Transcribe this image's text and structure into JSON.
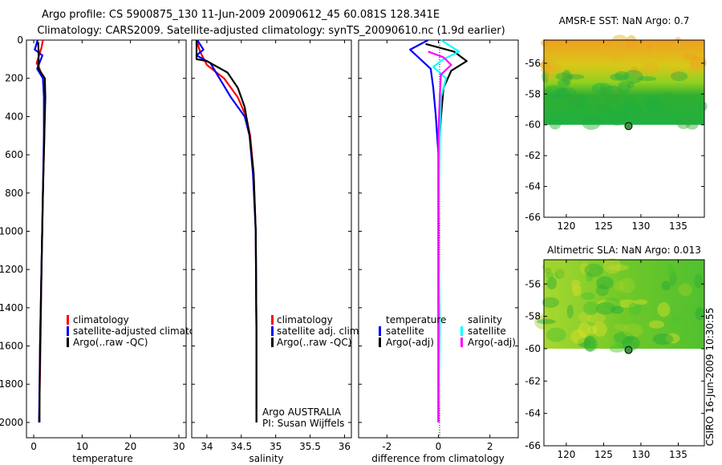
{
  "header": {
    "line1": "Argo profile: CS 5900875_130 11-Jun-2009 20090612_45 60.081S 128.341E",
    "line2": "Climatology: CARS2009. Satellite-adjusted climatology: synTS_20090610.nc (1.9d earlier)"
  },
  "credit": "CSIRO 16-Jun-2009 10:30:55",
  "colors": {
    "red": "#ff0000",
    "blue": "#0000ff",
    "black": "#000000",
    "cyan": "#00ffff",
    "magenta": "#ff00ff"
  },
  "chart_data": [
    {
      "id": "temperature",
      "type": "line",
      "xlabel": "temperature",
      "xlim": [
        -1.5,
        31.5
      ],
      "xticks": [
        0,
        10,
        20,
        30
      ],
      "ylim": [
        2080,
        0
      ],
      "yticks": [
        0,
        200,
        400,
        600,
        800,
        1000,
        1200,
        1400,
        1600,
        1800,
        2000
      ],
      "legend": [
        "climatology",
        "satellite-adjusted climatology",
        "Argo(..raw -QC)"
      ],
      "series": [
        {
          "name": "climatology",
          "color": "red",
          "points": [
            [
              1.9,
              0
            ],
            [
              1.6,
              40
            ],
            [
              0.6,
              120
            ],
            [
              1.2,
              150
            ],
            [
              1.9,
              200
            ],
            [
              2.2,
              300
            ],
            [
              2.2,
              500
            ],
            [
              1.9,
              800
            ],
            [
              1.6,
              1200
            ],
            [
              1.4,
              1600
            ],
            [
              1.1,
              2000
            ]
          ]
        },
        {
          "name": "satellite-adjusted climatology",
          "color": "blue",
          "points": [
            [
              0.8,
              0
            ],
            [
              0.2,
              50
            ],
            [
              1.8,
              80
            ],
            [
              0.7,
              150
            ],
            [
              1.9,
              200
            ],
            [
              2.1,
              300
            ],
            [
              2.1,
              500
            ],
            [
              1.9,
              800
            ],
            [
              1.6,
              1200
            ],
            [
              1.3,
              1600
            ],
            [
              1.1,
              2000
            ]
          ]
        },
        {
          "name": "Argo(..raw -QC)",
          "color": "black",
          "points": [
            [
              0.9,
              10
            ],
            [
              1.0,
              60
            ],
            [
              1.0,
              150
            ],
            [
              2.3,
              200
            ],
            [
              2.4,
              300
            ],
            [
              2.2,
              500
            ],
            [
              1.9,
              800
            ],
            [
              1.6,
              1200
            ],
            [
              1.3,
              1600
            ],
            [
              1.2,
              1900
            ],
            [
              1.2,
              2000
            ]
          ]
        }
      ]
    },
    {
      "id": "salinity",
      "type": "line",
      "xlabel": "salinity",
      "xlim": [
        33.78,
        36.1
      ],
      "xticks": [
        34,
        34.5,
        35,
        35.5,
        36
      ],
      "xticklabels": [
        "34",
        "34.5",
        "35",
        "35.5",
        "36"
      ],
      "ylim": [
        2080,
        0
      ],
      "legend": [
        "climatology",
        "satellite adj. clim.",
        "Argo(..raw -QC)"
      ],
      "note1": "Argo AUSTRALIA",
      "note2": "PI: Susan Wijffels",
      "series": [
        {
          "name": "climatology",
          "color": "red",
          "points": [
            [
              33.85,
              0
            ],
            [
              33.9,
              60
            ],
            [
              34.0,
              130
            ],
            [
              34.25,
              200
            ],
            [
              34.45,
              300
            ],
            [
              34.57,
              400
            ],
            [
              34.63,
              500
            ],
            [
              34.68,
              700
            ],
            [
              34.71,
              1000
            ],
            [
              34.72,
              1500
            ],
            [
              34.72,
              2000
            ]
          ]
        },
        {
          "name": "satellite adj. clim.",
          "color": "blue",
          "points": [
            [
              33.86,
              0
            ],
            [
              33.95,
              50
            ],
            [
              33.85,
              80
            ],
            [
              34.05,
              120
            ],
            [
              34.15,
              180
            ],
            [
              34.35,
              300
            ],
            [
              34.55,
              400
            ],
            [
              34.62,
              500
            ],
            [
              34.67,
              700
            ],
            [
              34.71,
              1000
            ],
            [
              34.72,
              1500
            ],
            [
              34.72,
              2000
            ]
          ]
        },
        {
          "name": "Argo(..raw -QC)",
          "color": "black",
          "points": [
            [
              33.85,
              0
            ],
            [
              33.85,
              100
            ],
            [
              34.0,
              110
            ],
            [
              34.3,
              170
            ],
            [
              34.45,
              250
            ],
            [
              34.55,
              350
            ],
            [
              34.62,
              500
            ],
            [
              34.68,
              700
            ],
            [
              34.71,
              1000
            ],
            [
              34.72,
              1500
            ],
            [
              34.72,
              2000
            ]
          ]
        }
      ]
    },
    {
      "id": "difference",
      "type": "line",
      "xlabel": "difference from climatology",
      "xlim": [
        -3.1,
        3.1
      ],
      "xticks": [
        -2,
        0,
        2
      ],
      "ylim": [
        2080,
        0
      ],
      "legend_temperature_title": "temperature",
      "legend_salinity_title": "salinity",
      "legend": [
        "satellite",
        "Argo(-adj)",
        "satellite",
        "Argo(-adj)"
      ],
      "series": [
        {
          "name": "temperature satellite",
          "color": "blue",
          "points": [
            [
              -0.4,
              0
            ],
            [
              -1.1,
              50
            ],
            [
              -0.7,
              100
            ],
            [
              -0.3,
              150
            ],
            [
              -0.2,
              250
            ],
            [
              -0.1,
              400
            ],
            [
              0,
              600
            ],
            [
              0,
              1000
            ],
            [
              0,
              2000
            ]
          ]
        },
        {
          "name": "temperature Argo(-adj)",
          "color": "black",
          "points": [
            [
              -0.5,
              20
            ],
            [
              0.6,
              60
            ],
            [
              1.1,
              110
            ],
            [
              0.5,
              160
            ],
            [
              0.2,
              250
            ],
            [
              0.1,
              400
            ],
            [
              0,
              600
            ],
            [
              0,
              1000
            ],
            [
              0,
              2000
            ]
          ]
        },
        {
          "name": "salinity satellite",
          "color": "cyan",
          "points": [
            [
              0.1,
              0
            ],
            [
              0.8,
              60
            ],
            [
              0.2,
              100
            ],
            [
              -0.2,
              140
            ],
            [
              0.3,
              200
            ],
            [
              0.1,
              300
            ],
            [
              0.05,
              500
            ],
            [
              0,
              1000
            ],
            [
              0.05,
              1500
            ],
            [
              0,
              2000
            ]
          ]
        },
        {
          "name": "salinity Argo(-adj)",
          "color": "magenta",
          "points": [
            [
              -0.4,
              60
            ],
            [
              0.2,
              90
            ],
            [
              0.5,
              130
            ],
            [
              0.1,
              180
            ],
            [
              0.05,
              300
            ],
            [
              0,
              500
            ],
            [
              0,
              1000
            ],
            [
              0,
              2000
            ]
          ]
        }
      ]
    },
    {
      "id": "sst-map",
      "type": "heatmap",
      "title": "AMSR-E SST: NaN Argo: 0.7",
      "xlim": [
        117,
        138.5
      ],
      "ylim": [
        -66,
        -54.5
      ],
      "xticks": [
        120,
        125,
        130,
        135
      ],
      "yticks": [
        -56,
        -58,
        -60,
        -62,
        -64,
        -66
      ],
      "data_lat_range": [
        -60,
        -54.5
      ],
      "argo_position": {
        "lon": 128.341,
        "lat": -60.081
      }
    },
    {
      "id": "sla-map",
      "type": "heatmap",
      "title": "Altimetric SLA: NaN Argo: 0.013",
      "xlim": [
        117,
        138.5
      ],
      "ylim": [
        -66,
        -54.5
      ],
      "xticks": [
        120,
        125,
        130,
        135
      ],
      "yticks": [
        -56,
        -58,
        -60,
        -62,
        -64,
        -66
      ],
      "data_lat_range": [
        -60,
        -54.5
      ],
      "argo_position": {
        "lon": 128.341,
        "lat": -60.081
      }
    }
  ]
}
